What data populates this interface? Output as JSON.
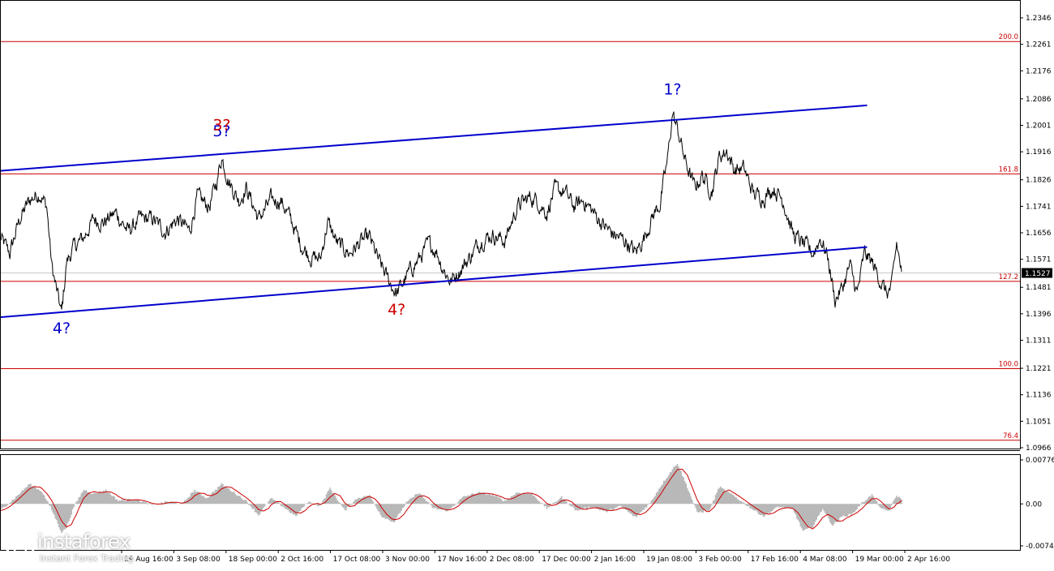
{
  "chart_data": [
    {
      "type": "line",
      "title": "",
      "xlabel": "",
      "ylabel": "",
      "ylim": [
        1.0966,
        1.2346
      ],
      "price_ticks": [
        "1.2346",
        "1.2261",
        "1.2176",
        "1.2086",
        "1.2001",
        "1.1916",
        "1.1826",
        "1.1741",
        "1.1656",
        "1.1571",
        "1.1481",
        "1.1396",
        "1.1311",
        "1.1221",
        "1.1136",
        "1.1051",
        "1.0966"
      ],
      "x_tick_labels": [
        "19 Aug 16:00",
        "3 Sep 08:00",
        "18 Sep 00:00",
        "2 Oct 16:00",
        "17 Oct 08:00",
        "3 Nov 00:00",
        "17 Nov 16:00",
        "2 Dec 08:00",
        "17 Dec 00:00",
        "2 Jan 16:00",
        "19 Jan 08:00",
        "3 Feb 00:00",
        "17 Feb 16:00",
        "4 Mar 08:00",
        "19 Mar 00:00",
        "2 Apr 16:00"
      ],
      "current_price": "1.1527",
      "fib_levels": [
        {
          "label": "200.0",
          "value": 1.227
        },
        {
          "label": "161.8",
          "value": 1.1845
        },
        {
          "label": "127.2",
          "value": 1.15
        },
        {
          "label": "100.0",
          "value": 1.122
        },
        {
          "label": "76.4",
          "value": 1.099
        }
      ],
      "wave_labels": [
        {
          "text": "4?",
          "color": "#0000cc",
          "date_index": 25,
          "price": 1.138
        },
        {
          "text": "5?",
          "color": "#0000cc",
          "date_index": 90,
          "price": 1.1955
        },
        {
          "text": "3?",
          "color": "#cc0000",
          "date_index": 90,
          "price": 1.1975
        },
        {
          "text": "4?",
          "color": "#cc0000",
          "date_index": 161,
          "price": 1.144
        },
        {
          "text": "1?",
          "color": "#0000cc",
          "date_index": 273,
          "price": 1.209
        }
      ],
      "trend_lines": [
        {
          "name": "upper channel",
          "from": {
            "date_index": 0,
            "price": 1.1855
          },
          "to": {
            "date_index": 352,
            "price": 1.2065
          }
        },
        {
          "name": "lower channel",
          "from": {
            "date_index": 0,
            "price": 1.1385
          },
          "to": {
            "date_index": 352,
            "price": 1.161
          }
        }
      ],
      "price_anchors": [
        [
          0,
          1.164
        ],
        [
          4,
          1.159
        ],
        [
          8,
          1.17
        ],
        [
          12,
          1.176
        ],
        [
          16,
          1.1785
        ],
        [
          19,
          1.174
        ],
        [
          21,
          1.155
        ],
        [
          23,
          1.147
        ],
        [
          25,
          1.1395
        ],
        [
          27,
          1.156
        ],
        [
          30,
          1.161
        ],
        [
          34,
          1.164
        ],
        [
          38,
          1.17
        ],
        [
          42,
          1.169
        ],
        [
          47,
          1.172
        ],
        [
          52,
          1.166
        ],
        [
          57,
          1.17
        ],
        [
          62,
          1.17
        ],
        [
          67,
          1.166
        ],
        [
          72,
          1.17
        ],
        [
          77,
          1.166
        ],
        [
          80,
          1.177
        ],
        [
          85,
          1.174
        ],
        [
          88,
          1.182
        ],
        [
          90,
          1.19
        ],
        [
          93,
          1.182
        ],
        [
          97,
          1.176
        ],
        [
          100,
          1.18
        ],
        [
          105,
          1.17
        ],
        [
          110,
          1.176
        ],
        [
          114,
          1.176
        ],
        [
          118,
          1.17
        ],
        [
          122,
          1.162
        ],
        [
          126,
          1.158
        ],
        [
          130,
          1.157
        ],
        [
          133,
          1.169
        ],
        [
          137,
          1.162
        ],
        [
          142,
          1.159
        ],
        [
          147,
          1.163
        ],
        [
          150,
          1.164
        ],
        [
          154,
          1.156
        ],
        [
          158,
          1.15
        ],
        [
          161,
          1.146
        ],
        [
          164,
          1.15
        ],
        [
          167,
          1.154
        ],
        [
          170,
          1.157
        ],
        [
          174,
          1.162
        ],
        [
          177,
          1.16
        ],
        [
          180,
          1.154
        ],
        [
          183,
          1.15
        ],
        [
          187,
          1.154
        ],
        [
          191,
          1.158
        ],
        [
          195,
          1.163
        ],
        [
          200,
          1.165
        ],
        [
          205,
          1.163
        ],
        [
          210,
          1.174
        ],
        [
          215,
          1.177
        ],
        [
          218,
          1.176
        ],
        [
          222,
          1.172
        ],
        [
          225,
          1.179
        ],
        [
          229,
          1.179
        ],
        [
          233,
          1.174
        ],
        [
          237,
          1.176
        ],
        [
          241,
          1.172
        ],
        [
          245,
          1.168
        ],
        [
          249,
          1.165
        ],
        [
          254,
          1.163
        ],
        [
          258,
          1.159
        ],
        [
          262,
          1.165
        ],
        [
          265,
          1.171
        ],
        [
          268,
          1.175
        ],
        [
          271,
          1.189
        ],
        [
          273,
          1.204
        ],
        [
          276,
          1.196
        ],
        [
          278,
          1.189
        ],
        [
          282,
          1.18
        ],
        [
          285,
          1.184
        ],
        [
          289,
          1.179
        ],
        [
          292,
          1.19
        ],
        [
          295,
          1.192
        ],
        [
          298,
          1.186
        ],
        [
          302,
          1.186
        ],
        [
          306,
          1.178
        ],
        [
          310,
          1.177
        ],
        [
          314,
          1.18
        ],
        [
          318,
          1.176
        ],
        [
          322,
          1.165
        ],
        [
          326,
          1.162
        ],
        [
          330,
          1.159
        ],
        [
          333,
          1.164
        ],
        [
          336,
          1.158
        ],
        [
          339,
          1.144
        ],
        [
          342,
          1.148
        ],
        [
          345,
          1.155
        ],
        [
          348,
          1.146
        ],
        [
          351,
          1.159
        ],
        [
          354,
          1.156
        ],
        [
          357,
          1.151
        ],
        [
          360,
          1.146
        ],
        [
          362,
          1.148
        ],
        [
          364,
          1.162
        ],
        [
          366,
          1.153
        ]
      ]
    },
    {
      "type": "area",
      "title": "",
      "ylim": [
        -0.0074,
        0.00776
      ],
      "tick_labels": [
        "0.00776",
        "0.00",
        "-0.0074"
      ],
      "histogram_color": "#b8b8b8",
      "signal_color": "#cc0000",
      "osc_anchors": [
        [
          0,
          -0.0012
        ],
        [
          6,
          0.001
        ],
        [
          12,
          0.0035
        ],
        [
          17,
          0.0022
        ],
        [
          21,
          -0.001
        ],
        [
          25,
          -0.005
        ],
        [
          27,
          -0.0042
        ],
        [
          30,
          -0.0005
        ],
        [
          34,
          0.0025
        ],
        [
          38,
          0.0018
        ],
        [
          43,
          0.0024
        ],
        [
          48,
          0.0006
        ],
        [
          55,
          0.0008
        ],
        [
          62,
          -0.0002
        ],
        [
          68,
          0.0004
        ],
        [
          74,
          0.0
        ],
        [
          79,
          0.0024
        ],
        [
          84,
          0.001
        ],
        [
          90,
          0.0035
        ],
        [
          95,
          0.002
        ],
        [
          100,
          0.0005
        ],
        [
          105,
          -0.002
        ],
        [
          110,
          0.001
        ],
        [
          115,
          -0.0005
        ],
        [
          120,
          -0.0022
        ],
        [
          125,
          0.0004
        ],
        [
          130,
          -0.0004
        ],
        [
          134,
          0.0028
        ],
        [
          140,
          -0.0012
        ],
        [
          145,
          0.001
        ],
        [
          150,
          0.0015
        ],
        [
          155,
          -0.0022
        ],
        [
          160,
          -0.0032
        ],
        [
          165,
          0.0002
        ],
        [
          170,
          0.002
        ],
        [
          176,
          -0.0008
        ],
        [
          182,
          -0.0012
        ],
        [
          188,
          0.0012
        ],
        [
          194,
          0.002
        ],
        [
          200,
          0.0016
        ],
        [
          205,
          0.0005
        ],
        [
          210,
          0.002
        ],
        [
          216,
          0.0018
        ],
        [
          222,
          -0.0008
        ],
        [
          228,
          0.0012
        ],
        [
          234,
          -0.0012
        ],
        [
          240,
          -0.0005
        ],
        [
          246,
          -0.0014
        ],
        [
          252,
          -0.0004
        ],
        [
          258,
          -0.0024
        ],
        [
          264,
          0.0002
        ],
        [
          268,
          0.003
        ],
        [
          272,
          0.0055
        ],
        [
          275,
          0.0072
        ],
        [
          279,
          0.003
        ],
        [
          283,
          -0.0015
        ],
        [
          288,
          -0.0012
        ],
        [
          292,
          0.003
        ],
        [
          298,
          0.0014
        ],
        [
          304,
          -0.0005
        ],
        [
          310,
          -0.0022
        ],
        [
          316,
          -0.0005
        ],
        [
          322,
          -0.001
        ],
        [
          326,
          -0.0048
        ],
        [
          330,
          -0.004
        ],
        [
          334,
          -0.0008
        ],
        [
          338,
          -0.0038
        ],
        [
          342,
          -0.0022
        ],
        [
          346,
          -0.0018
        ],
        [
          350,
          0.0002
        ],
        [
          354,
          0.0016
        ],
        [
          358,
          -0.001
        ],
        [
          361,
          -0.0012
        ],
        [
          364,
          0.0015
        ],
        [
          366,
          0.0008
        ]
      ]
    }
  ],
  "logo": {
    "title": "instaforex",
    "subtitle": "Instant Forex Trading"
  }
}
